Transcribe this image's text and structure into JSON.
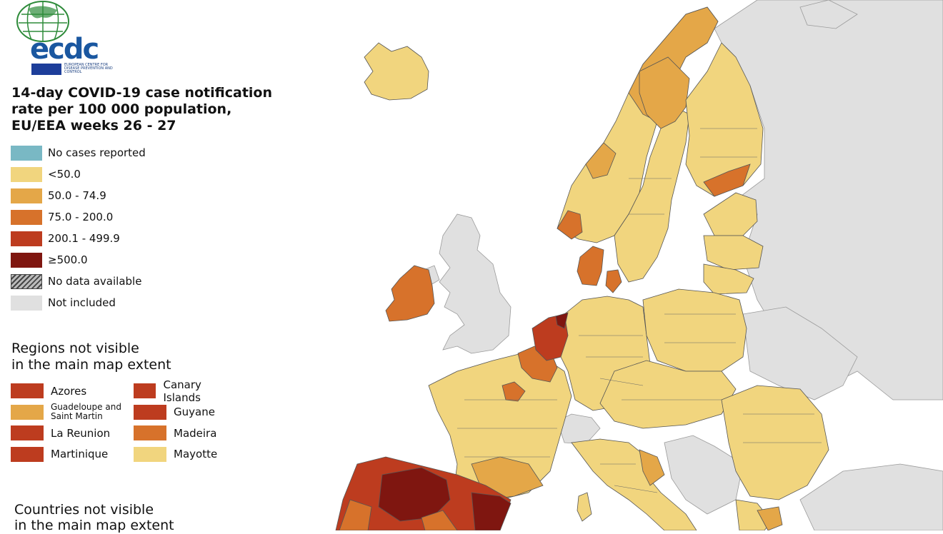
{
  "logo": {
    "wordmark": "ecdc",
    "subtitle": "EUROPEAN CENTRE FOR DISEASE PREVENTION AND CONTROL"
  },
  "title": "14-day COVID-19 case notification rate per 100 000 population, EU/EEA weeks 26 - 27",
  "legend": [
    {
      "label": "No cases reported",
      "color": "#79b8c4"
    },
    {
      "label": "<50.0",
      "color": "#f1d57e"
    },
    {
      "label": "50.0 - 74.9",
      "color": "#e4a748"
    },
    {
      "label": "75.0 - 200.0",
      "color": "#d7722b"
    },
    {
      "label": "200.1 - 499.9",
      "color": "#bd3c1f"
    },
    {
      "label": "≥500.0",
      "color": "#7f1610"
    },
    {
      "label": "No data available",
      "color": "hatch"
    },
    {
      "label": "Not included",
      "color": "#e0e0e0"
    }
  ],
  "regions_title_1": "Regions not visible",
  "regions_title_2": "in the main map extent",
  "regions_left": [
    {
      "label": "Azores",
      "color": "#bd3c1f"
    },
    {
      "label": "Guadeloupe and Saint Martin",
      "color": "#e4a748"
    },
    {
      "label": "La Reunion",
      "color": "#bd3c1f"
    },
    {
      "label": "Martinique",
      "color": "#bd3c1f"
    }
  ],
  "regions_right": [
    {
      "label": "Canary Islands",
      "color": "#bd3c1f"
    },
    {
      "label": "Guyane",
      "color": "#bd3c1f"
    },
    {
      "label": "Madeira",
      "color": "#d7722b"
    },
    {
      "label": "Mayotte",
      "color": "#f1d57e"
    }
  ],
  "countries_title_1": "Countries not visible",
  "countries_title_2": "in the main map extent",
  "colors": {
    "sea": "#ffffff",
    "not_included": "#e0e0e0",
    "border": "#555555"
  }
}
